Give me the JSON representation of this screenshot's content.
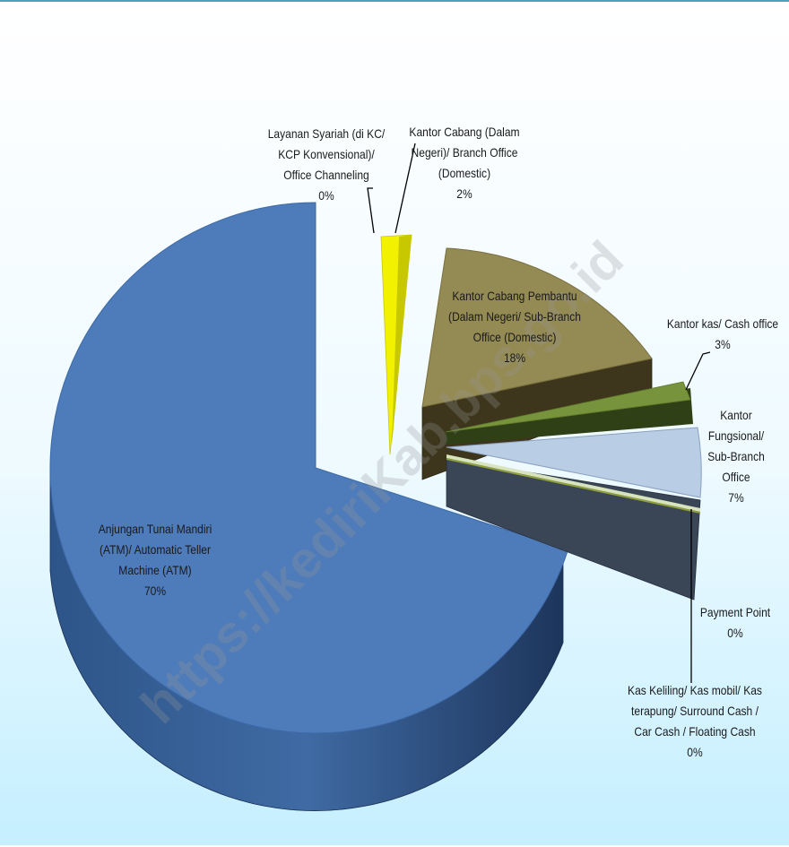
{
  "chart_data": {
    "type": "pie",
    "title": "",
    "slices": [
      {
        "name": "Anjungan Tunai Mandiri (ATM)/ Automatic Teller Machine (ATM)",
        "lines": [
          "Anjungan Tunai Mandiri",
          "(ATM)/ Automatic Teller",
          "Machine (ATM)"
        ],
        "value": 70,
        "pct_label": "70%",
        "color": "#4e7bb9",
        "exploded": false
      },
      {
        "name": "Layanan Syariah (di KC/ KCP Konvensional)/ Office Channeling",
        "lines": [
          "Layanan Syariah (di KC/",
          "KCP Konvensional)/",
          "Office Channeling"
        ],
        "value": 0,
        "pct_label": "0%",
        "color": "#ffff00",
        "exploded": true
      },
      {
        "name": "Kantor Cabang (Dalam Negeri)/ Branch Office (Domestic)",
        "lines": [
          "Kantor Cabang (Dalam",
          "Negeri)/ Branch Office",
          "(Domestic)"
        ],
        "value": 2,
        "pct_label": "2%",
        "color": "#f2f200",
        "exploded": true
      },
      {
        "name": "Kantor Cabang Pembantu (Dalam Negeri/ Sub-Branch Office (Domestic)",
        "lines": [
          "Kantor Cabang Pembantu",
          "(Dalam Negeri/ Sub-Branch",
          "Office (Domestic)"
        ],
        "value": 18,
        "pct_label": "18%",
        "color": "#948a54",
        "exploded": true
      },
      {
        "name": "Kantor kas/ Cash office",
        "lines": [
          "Kantor kas/ Cash office"
        ],
        "value": 3,
        "pct_label": "3%",
        "color": "#77933c",
        "exploded": true
      },
      {
        "name": "Kantor Fungsional/ Sub-Branch Office",
        "lines": [
          "Kantor",
          "Fungsional/",
          "Sub-Branch",
          "Office"
        ],
        "value": 7,
        "pct_label": "7%",
        "color": "#b9cde5",
        "exploded": true
      },
      {
        "name": "Payment Point",
        "lines": [
          "Payment Point"
        ],
        "value": 0,
        "pct_label": "0%",
        "color": "#d7e4bd",
        "exploded": true
      },
      {
        "name": "Kas Keliling/ Kas mobil/ Kas terapung/ Surround Cash / Car Cash / Floating Cash",
        "lines": [
          "Kas Keliling/ Kas mobil/ Kas",
          "terapung/ Surround Cash /",
          "Car Cash / Floating Cash"
        ],
        "value": 0,
        "pct_label": "0%",
        "color": "#ffffff",
        "exploded": true
      }
    ],
    "legend": "none",
    "data_labels": "category-and-percent",
    "style": "3d-exploded-pie"
  },
  "watermark_text": "https://kediriKab.bps.go.id"
}
